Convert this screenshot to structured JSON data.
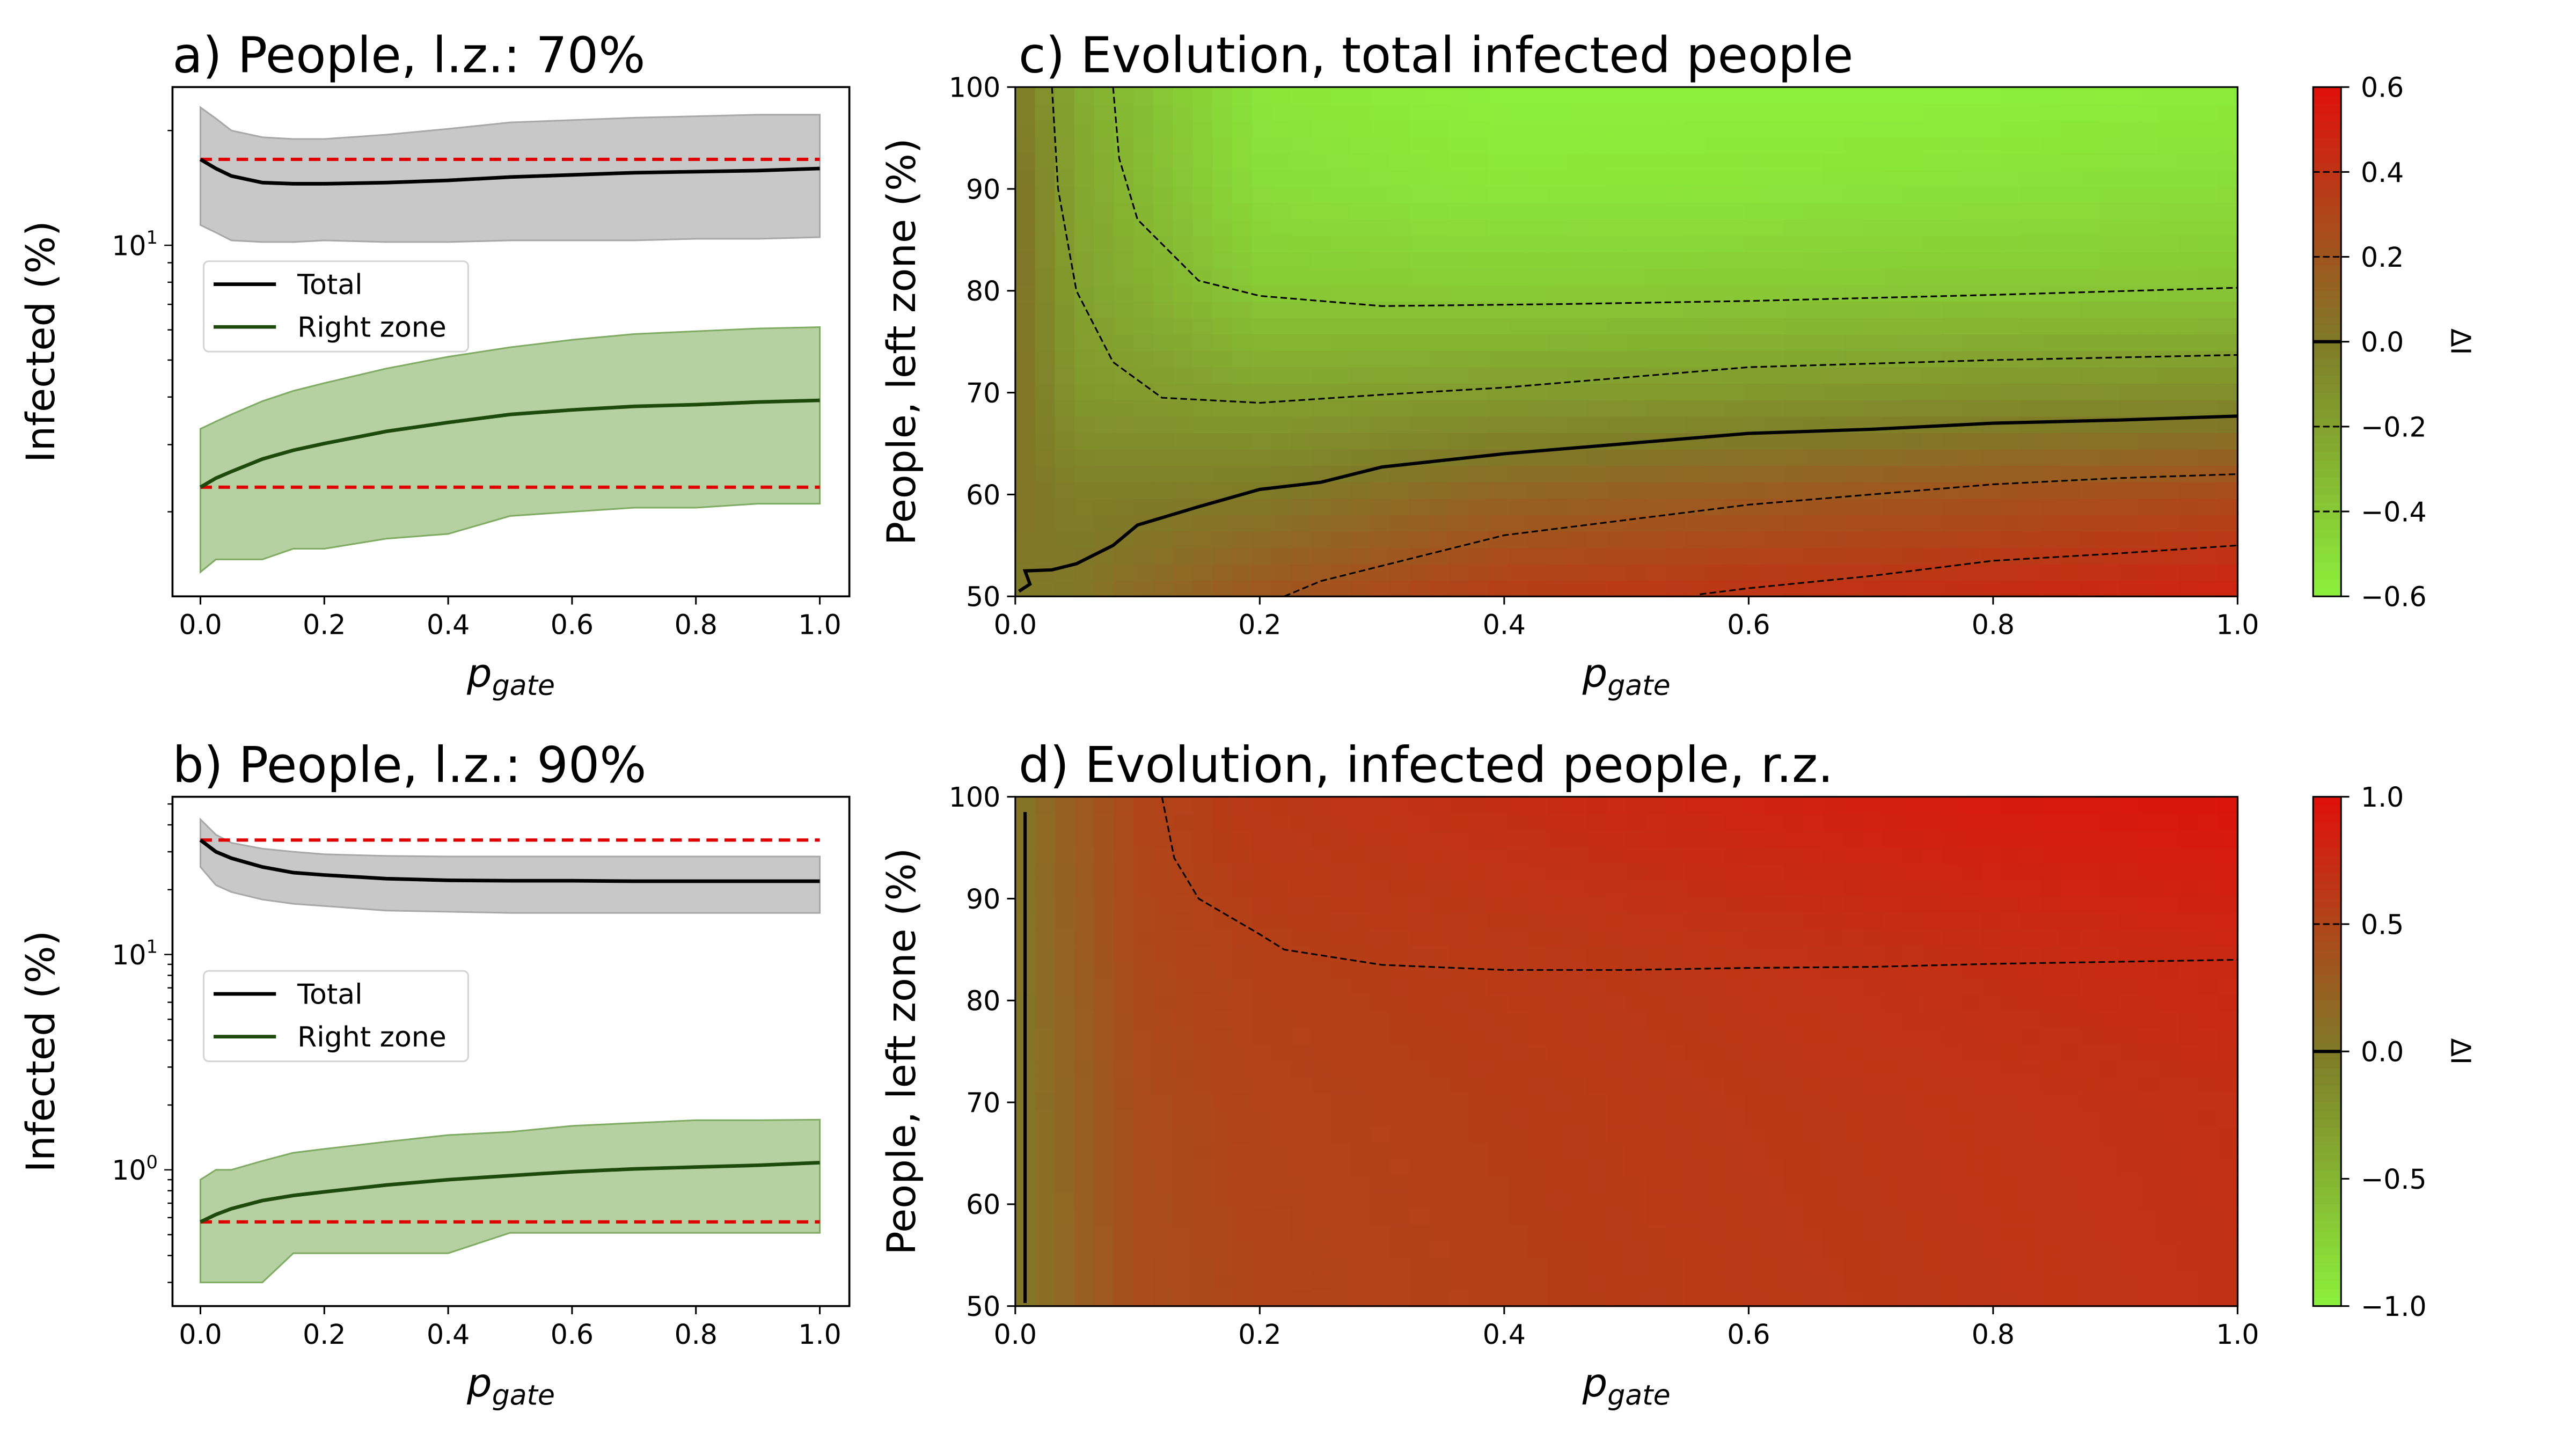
{
  "chart_data": [
    {
      "id": "a",
      "type": "line",
      "title": "a) People, l.z.: 70%",
      "xlabel": {
        "base": "p",
        "sub": "gate"
      },
      "ylabel": "Infected (%)",
      "xlim": [
        0,
        1
      ],
      "ylim": [
        1.2,
        26
      ],
      "yscale": "log",
      "xticks": [
        "0.0",
        "0.2",
        "0.4",
        "0.6",
        "0.8",
        "1.0"
      ],
      "yticks": [
        {
          "value": 10,
          "base": "10",
          "exp": "1"
        }
      ],
      "legend": {
        "placement": "center-left",
        "entries": [
          "Total",
          "Right zone"
        ]
      },
      "x": [
        0,
        0.025,
        0.05,
        0.1,
        0.15,
        0.2,
        0.3,
        0.4,
        0.5,
        0.6,
        0.7,
        0.8,
        0.9,
        1.0
      ],
      "series": [
        {
          "name": "Total",
          "color": "#000000",
          "values": [
            16.8,
            15.9,
            15.2,
            14.6,
            14.5,
            14.5,
            14.6,
            14.8,
            15.1,
            15.3,
            15.5,
            15.6,
            15.7,
            15.9
          ],
          "upper": [
            23,
            21.5,
            20,
            19.2,
            19,
            19,
            19.5,
            20.2,
            21,
            21.3,
            21.6,
            21.8,
            22,
            22
          ],
          "lower": [
            11.3,
            10.8,
            10.3,
            10.2,
            10.2,
            10.3,
            10.2,
            10.2,
            10.3,
            10.3,
            10.3,
            10.4,
            10.4,
            10.5
          ],
          "band_color": "#c8c8c8",
          "reference": 16.8
        },
        {
          "name": "Right zone",
          "color": "#1e4a0e",
          "values": [
            2.32,
            2.45,
            2.55,
            2.75,
            2.9,
            3.02,
            3.25,
            3.43,
            3.6,
            3.7,
            3.78,
            3.82,
            3.88,
            3.92
          ],
          "upper": [
            3.3,
            3.45,
            3.6,
            3.9,
            4.15,
            4.35,
            4.75,
            5.1,
            5.4,
            5.65,
            5.85,
            5.95,
            6.05,
            6.1
          ],
          "lower": [
            1.39,
            1.5,
            1.5,
            1.5,
            1.6,
            1.6,
            1.7,
            1.75,
            1.95,
            2.0,
            2.05,
            2.05,
            2.1,
            2.1
          ],
          "band_color": "#b6d1a1",
          "reference": 2.32
        }
      ],
      "reference_color": "#e00000",
      "grid": false
    },
    {
      "id": "b",
      "type": "line",
      "title": "b) People, l.z.: 90%",
      "xlabel": {
        "base": "p",
        "sub": "gate"
      },
      "ylabel": "Infected (%)",
      "xlim": [
        0,
        1
      ],
      "ylim": [
        0.233,
        54
      ],
      "yscale": "log",
      "xticks": [
        "0.0",
        "0.2",
        "0.4",
        "0.6",
        "0.8",
        "1.0"
      ],
      "yticks": [
        {
          "value": 1,
          "base": "10",
          "exp": "0"
        },
        {
          "value": 10,
          "base": "10",
          "exp": "1"
        }
      ],
      "legend": {
        "placement": "center-left",
        "entries": [
          "Total",
          "Right zone"
        ]
      },
      "x": [
        0,
        0.025,
        0.05,
        0.1,
        0.15,
        0.2,
        0.3,
        0.4,
        0.5,
        0.6,
        0.7,
        0.8,
        0.9,
        1.0
      ],
      "series": [
        {
          "name": "Total",
          "color": "#000000",
          "values": [
            34,
            30,
            28,
            25.5,
            24,
            23.4,
            22.5,
            22.1,
            22,
            22,
            21.9,
            21.9,
            21.9,
            21.9
          ],
          "upper": [
            42.4,
            36,
            33,
            31,
            30,
            29.2,
            28.7,
            28.5,
            28.5,
            28.5,
            28.5,
            28.5,
            28.5,
            28.5
          ],
          "lower": [
            25.5,
            21,
            19.5,
            18,
            17.2,
            16.8,
            16,
            15.8,
            15.6,
            15.6,
            15.6,
            15.6,
            15.6,
            15.6
          ],
          "band_color": "#c8c8c8",
          "reference": 34
        },
        {
          "name": "Right zone",
          "color": "#1e4a0e",
          "values": [
            0.573,
            0.62,
            0.66,
            0.72,
            0.76,
            0.79,
            0.85,
            0.9,
            0.94,
            0.98,
            1.01,
            1.03,
            1.05,
            1.08
          ],
          "upper": [
            0.9,
            1.0,
            1.0,
            1.1,
            1.2,
            1.25,
            1.35,
            1.45,
            1.5,
            1.6,
            1.65,
            1.7,
            1.7,
            1.71
          ],
          "lower": [
            0.3,
            0.3,
            0.3,
            0.3,
            0.41,
            0.41,
            0.41,
            0.41,
            0.51,
            0.51,
            0.51,
            0.51,
            0.51,
            0.51
          ],
          "band_color": "#b6d1a1",
          "reference": 0.573
        }
      ],
      "reference_color": "#e00000",
      "grid": false
    },
    {
      "id": "c",
      "type": "heatmap",
      "title": "c) Evolution, total infected people",
      "xlabel": {
        "base": "p",
        "sub": "gate"
      },
      "ylabel": "People, left zone (%)",
      "xlim": [
        0,
        1
      ],
      "ylim": [
        50,
        100
      ],
      "xticks": [
        "0.0",
        "0.2",
        "0.4",
        "0.6",
        "0.8",
        "1.0"
      ],
      "yticks": [
        "50",
        "60",
        "70",
        "80",
        "90",
        "100"
      ],
      "colorbar": {
        "label": "ΔI",
        "range": [
          -0.6,
          0.6
        ],
        "ticks": [
          "−0.6",
          "−0.4",
          "−0.2",
          "0.0",
          "0.2",
          "0.4",
          "0.6"
        ],
        "colors": {
          "low": "#8cf03c",
          "mid": "#7f7a28",
          "high": "#e0100a"
        }
      },
      "grid_x": [
        0,
        0.05,
        0.2,
        0.4,
        0.6,
        0.8,
        1.0
      ],
      "grid_y": [
        50,
        60,
        70,
        80,
        90,
        100
      ],
      "z": [
        [
          0.0,
          0.02,
          0.2,
          0.35,
          0.4,
          0.45,
          0.5
        ],
        [
          0.03,
          -0.02,
          0.0,
          0.12,
          0.17,
          0.22,
          0.27
        ],
        [
          0.05,
          -0.15,
          -0.2,
          -0.17,
          -0.15,
          -0.12,
          -0.1
        ],
        [
          0.05,
          -0.2,
          -0.4,
          -0.41,
          -0.4,
          -0.39,
          -0.38
        ],
        [
          0.05,
          -0.22,
          -0.5,
          -0.55,
          -0.54,
          -0.52,
          -0.5
        ],
        [
          0.0,
          -0.25,
          -0.55,
          -0.6,
          -0.6,
          -0.6,
          -0.58
        ]
      ],
      "contours": [
        {
          "level": -0.4,
          "points": [
            [
              0.08,
              100
            ],
            [
              0.085,
              93
            ],
            [
              0.1,
              87
            ],
            [
              0.15,
              81
            ],
            [
              0.2,
              79.5
            ],
            [
              0.3,
              78.5
            ],
            [
              0.45,
              78.7
            ],
            [
              0.6,
              79
            ],
            [
              0.8,
              79.6
            ],
            [
              1.0,
              80.3
            ]
          ]
        },
        {
          "level": -0.2,
          "points": [
            [
              0.03,
              100
            ],
            [
              0.035,
              90
            ],
            [
              0.05,
              80
            ],
            [
              0.08,
              73
            ],
            [
              0.12,
              69.5
            ],
            [
              0.2,
              69
            ],
            [
              0.3,
              69.8
            ],
            [
              0.4,
              70.5
            ],
            [
              0.6,
              72.5
            ],
            [
              0.8,
              73.2
            ],
            [
              1.0,
              73.7
            ]
          ]
        },
        {
          "level": 0.0,
          "points": [
            [
              0.003,
              50.5
            ],
            [
              0.012,
              51.2
            ],
            [
              0.008,
              52.5
            ],
            [
              0.03,
              52.6
            ],
            [
              0.05,
              53.2
            ],
            [
              0.08,
              55
            ],
            [
              0.1,
              57
            ],
            [
              0.15,
              58.8
            ],
            [
              0.2,
              60.5
            ],
            [
              0.25,
              61.2
            ],
            [
              0.3,
              62.7
            ],
            [
              0.4,
              64
            ],
            [
              0.5,
              65
            ],
            [
              0.6,
              66
            ],
            [
              0.7,
              66.4
            ],
            [
              0.8,
              67
            ],
            [
              0.9,
              67.3
            ],
            [
              1.0,
              67.7
            ]
          ]
        },
        {
          "level": 0.2,
          "points": [
            [
              0.22,
              50
            ],
            [
              0.25,
              51.5
            ],
            [
              0.3,
              53
            ],
            [
              0.4,
              56
            ],
            [
              0.5,
              57.5
            ],
            [
              0.6,
              59
            ],
            [
              0.7,
              60
            ],
            [
              0.8,
              61
            ],
            [
              0.9,
              61.6
            ],
            [
              1.0,
              62
            ]
          ]
        },
        {
          "level": 0.4,
          "points": [
            [
              0.56,
              50.2
            ],
            [
              0.6,
              50.8
            ],
            [
              0.7,
              52
            ],
            [
              0.8,
              53.5
            ],
            [
              0.9,
              54.2
            ],
            [
              1.0,
              55
            ]
          ]
        }
      ]
    },
    {
      "id": "d",
      "type": "heatmap",
      "title": "d) Evolution, infected people, r.z.",
      "xlabel": {
        "base": "p",
        "sub": "gate"
      },
      "ylabel": "People, left zone (%)",
      "xlim": [
        0,
        1
      ],
      "ylim": [
        50,
        100
      ],
      "xticks": [
        "0.0",
        "0.2",
        "0.4",
        "0.6",
        "0.8",
        "1.0"
      ],
      "yticks": [
        "50",
        "60",
        "70",
        "80",
        "90",
        "100"
      ],
      "colorbar": {
        "label": "ΔI",
        "range": [
          -1.0,
          1.0
        ],
        "ticks": [
          "−1.0",
          "−0.5",
          "0.0",
          "0.5",
          "1.0"
        ],
        "colors": {
          "low": "#8cf03c",
          "mid": "#7f7a28",
          "high": "#e0100a"
        }
      },
      "grid_x": [
        0,
        0.02,
        0.1,
        0.2,
        0.4,
        0.6,
        0.8,
        1.0
      ],
      "grid_y": [
        50,
        70,
        85,
        100
      ],
      "z": [
        [
          0.0,
          0.1,
          0.42,
          0.5,
          0.55,
          0.6,
          0.64,
          0.68
        ],
        [
          0.0,
          0.1,
          0.44,
          0.52,
          0.57,
          0.62,
          0.66,
          0.7
        ],
        [
          0.0,
          0.12,
          0.47,
          0.55,
          0.6,
          0.66,
          0.72,
          0.78
        ],
        [
          0.0,
          0.14,
          0.5,
          0.62,
          0.72,
          0.82,
          0.9,
          0.95
        ]
      ],
      "contours": [
        {
          "level": 0.0,
          "points": [
            [
              0.008,
              50.3
            ],
            [
              0.008,
              98.5
            ]
          ]
        },
        {
          "level": 0.5,
          "points": [
            [
              0.12,
              100
            ],
            [
              0.125,
              97
            ],
            [
              0.13,
              94
            ],
            [
              0.14,
              92
            ],
            [
              0.15,
              90
            ],
            [
              0.2,
              86.5
            ],
            [
              0.22,
              85
            ],
            [
              0.3,
              83.5
            ],
            [
              0.4,
              83
            ],
            [
              0.5,
              83
            ],
            [
              0.6,
              83.2
            ],
            [
              0.7,
              83.3
            ],
            [
              0.8,
              83.6
            ],
            [
              1.0,
              84
            ]
          ]
        }
      ]
    }
  ]
}
